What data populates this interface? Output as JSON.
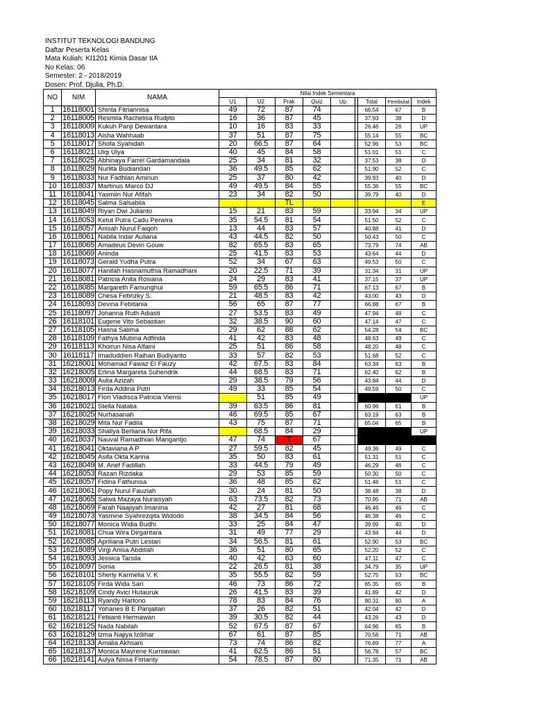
{
  "header": {
    "institution": "INSTITUT TEKNOLOGI BANDUNG",
    "list_title": "Daftar Peserta Kelas",
    "course": "Mata Kuliah: KI1201 Kimia Dasar IIA",
    "class_no": "No Kelas: 06",
    "semester": "Semester: 2 - 2018/2019",
    "lecturer": "Dosen: Prof. Djulia, Ph.D."
  },
  "table": {
    "headers": {
      "no": "NO",
      "nim": "NIM",
      "nama": "NAMA",
      "group": "Nilai Indek Sementara",
      "u1": "U1",
      "u2": "U2",
      "prak": "Prak",
      "quiz": "Quiz",
      "up": "Up",
      "total": "Total",
      "pembulat": "Pembulat",
      "indek": "Indek"
    },
    "colors": {
      "yellow": "#ffff00",
      "red": "#ff0000",
      "black": "#000000"
    },
    "rows": [
      [
        "1",
        "16118001",
        "Shinta Fitriannisa",
        "49",
        "72",
        "87",
        "74",
        "",
        "66.54",
        "67",
        "B"
      ],
      [
        "2",
        "16118005",
        "Resmila Rachelisa Rudjito",
        "16",
        "36",
        "87",
        "45",
        "",
        "37.93",
        "38",
        "D"
      ],
      [
        "3",
        "16118009",
        "Kukuh Panji Dewantara",
        "10",
        "16",
        "83",
        "33",
        "",
        "26.46",
        "26",
        "UP"
      ],
      [
        "4",
        "16118013",
        "Aisha Wahhaab",
        "37",
        "51",
        "87",
        "75",
        "",
        "55.14",
        "55",
        "BC"
      ],
      [
        "5",
        "16118017",
        "Shofa Syahidah",
        "20",
        "66.5",
        "87",
        "64",
        "",
        "52.96",
        "53",
        "BC"
      ],
      [
        "6",
        "16118021",
        "Ulqi Ulya",
        "40",
        "45",
        "84",
        "58",
        "",
        "51.01",
        "51",
        "C"
      ],
      [
        "7",
        "16118025",
        "Abhinaya Farrel Gardamandala",
        "25",
        "34",
        "81",
        "32",
        "",
        "37.53",
        "38",
        "D"
      ],
      [
        "8",
        "16118029",
        "Nurlita Budiandari",
        "36",
        "49.5",
        "85",
        "62",
        "",
        "51.90",
        "52",
        "C"
      ],
      [
        "9",
        "16118033",
        "Nur Fadhlan Aminun",
        "25",
        "37",
        "80",
        "42",
        "",
        "39.93",
        "40",
        "D"
      ],
      [
        "10",
        "16118037",
        "Martinus Marco DJ",
        "49",
        "49.5",
        "84",
        "55",
        "",
        "55.36",
        "55",
        "BC"
      ],
      [
        "11",
        "16118041",
        "Yasmiin Nur Afifah",
        "23",
        "34",
        "82",
        "50",
        "",
        "39.79",
        "40",
        "D"
      ],
      [
        "12",
        "16118045",
        "Salma Salsabila",
        "",
        "",
        "TL",
        "",
        "",
        "",
        "",
        "E"
      ],
      [
        "13",
        "16118049",
        "Riyan Dwi Julianto",
        "15",
        "21",
        "83",
        "59",
        "",
        "33.94",
        "34",
        "UP"
      ],
      [
        "14",
        "16118053",
        "Ketut Putra Cadu Perwira",
        "35",
        "54.5",
        "81",
        "54",
        "",
        "51.50",
        "52",
        "C"
      ],
      [
        "15",
        "16118057",
        "Anisah Nurul Faiqoh",
        "13",
        "44",
        "83",
        "57",
        "",
        "40.88",
        "41",
        "D"
      ],
      [
        "16",
        "16118061",
        "Nabila Indar Auliana",
        "43",
        "44.5",
        "82",
        "50",
        "",
        "50.43",
        "50",
        "C"
      ],
      [
        "17",
        "16118065",
        "Amadeus Devin Gouw",
        "82",
        "65.5",
        "83",
        "65",
        "",
        "73.79",
        "74",
        "AB"
      ],
      [
        "18",
        "16118069",
        "Aninda",
        "25",
        "41.5",
        "83",
        "53",
        "",
        "43.64",
        "44",
        "D"
      ],
      [
        "19",
        "16118073",
        "Gerald Yudha Putra",
        "52",
        "34",
        "67",
        "63",
        "",
        "49.53",
        "50",
        "C"
      ],
      [
        "20",
        "16118077",
        "Hanifah Hasnamuthia Ramadhani",
        "20",
        "22.5",
        "71",
        "39",
        "",
        "31.34",
        "31",
        "UP"
      ],
      [
        "21",
        "16118081",
        "Patricia Anita Rosiana",
        "24",
        "29",
        "83",
        "41",
        "",
        "37.15",
        "37",
        "UP"
      ],
      [
        "22",
        "16118085",
        "Margareth Famunghui",
        "59",
        "65.5",
        "86",
        "71",
        "",
        "67.13",
        "67",
        "B"
      ],
      [
        "23",
        "16118089",
        "Chesa Febrizky S.",
        "21",
        "48.5",
        "83",
        "42",
        "",
        "43.00",
        "43",
        "D"
      ],
      [
        "24",
        "16118093",
        "Devina Febitania",
        "56",
        "65",
        "87",
        "77",
        "",
        "66.88",
        "67",
        "B"
      ],
      [
        "25",
        "16118097",
        "Johanna Ruth Adiasti",
        "27",
        "53.5",
        "83",
        "49",
        "",
        "47.94",
        "48",
        "C"
      ],
      [
        "26",
        "16118101",
        "Eugene Vito Sebastian",
        "32",
        "38.5",
        "90",
        "60",
        "",
        "47.14",
        "47",
        "C"
      ],
      [
        "27",
        "16118105",
        "Hasna Salima",
        "29",
        "62",
        "88",
        "62",
        "",
        "54.28",
        "54",
        "BC"
      ],
      [
        "28",
        "16118109",
        "Fathya Mubina Adfinda",
        "41",
        "42",
        "83",
        "48",
        "",
        "48.63",
        "49",
        "C"
      ],
      [
        "29",
        "16118113",
        "Khoirun Nisa Alfaini",
        "25",
        "51",
        "86",
        "58",
        "",
        "48.20",
        "48",
        "C"
      ],
      [
        "30",
        "16118117",
        "Imaduddien Raihan Budiyanto",
        "33",
        "57",
        "82",
        "53",
        "",
        "51.68",
        "52",
        "C"
      ],
      [
        "31",
        "16218001",
        "Mohamad Fawaz El Fauzy",
        "42",
        "67.5",
        "83",
        "84",
        "",
        "63.34",
        "63",
        "B"
      ],
      [
        "32",
        "16218005",
        "Erlina Margareta Suhendrik",
        "44",
        "68.5",
        "83",
        "71",
        "",
        "62.40",
        "62",
        "B"
      ],
      [
        "33",
        "16218009",
        "Aulia Azizah",
        "29",
        "38.5",
        "79",
        "56",
        "",
        "43.84",
        "44",
        "D"
      ],
      [
        "34",
        "16218013",
        "Firda Addina Putri",
        "49",
        "33",
        "85",
        "54",
        "",
        "49.59",
        "50",
        "C"
      ],
      [
        "35",
        "16218017",
        "Flori Vladisca Patricia Viensi",
        "",
        "51",
        "85",
        "49",
        "",
        "",
        "",
        "UP"
      ],
      [
        "36",
        "16218021",
        "Stella Natalia",
        "39",
        "63.5",
        "86",
        "81",
        "",
        "60.96",
        "61",
        "B"
      ],
      [
        "37",
        "16218025",
        "Nurhasanah",
        "46",
        "69.5",
        "85",
        "67",
        "",
        "63.19",
        "63",
        "B"
      ],
      [
        "38",
        "16218029",
        "Mita Nur Fadila",
        "43",
        "75",
        "87",
        "71",
        "",
        "65.04",
        "65",
        "B"
      ],
      [
        "39",
        "16218033",
        "Shallya Berliana Nur Rifa",
        "",
        "68.5",
        "84",
        "29",
        "",
        "",
        "",
        "UP"
      ],
      [
        "40",
        "16218037",
        "Nauval Ramadhian Mangantjo",
        "47",
        "74",
        "T",
        "67",
        "",
        "",
        "",
        ""
      ],
      [
        "41",
        "16218041",
        "Oktaviana A P",
        "27",
        "59.5",
        "82",
        "45",
        "",
        "49.36",
        "49",
        "C"
      ],
      [
        "42",
        "16218045",
        "Asifa Okta Karina",
        "35",
        "50",
        "83",
        "61",
        "",
        "51.31",
        "51",
        "C"
      ],
      [
        "43",
        "16218049",
        "M. Arief Fadillah",
        "33",
        "44.5",
        "79",
        "49",
        "",
        "46.29",
        "46",
        "C"
      ],
      [
        "44",
        "16218053",
        "Razan Rizdaka",
        "29",
        "53",
        "85",
        "59",
        "",
        "50.30",
        "50",
        "C"
      ],
      [
        "45",
        "16218057",
        "Fidina Fathunisa",
        "36",
        "48",
        "85",
        "62",
        "",
        "51.46",
        "51",
        "C"
      ],
      [
        "46",
        "16218061",
        "Popy Nurul Fauziah",
        "30",
        "24",
        "81",
        "50",
        "",
        "38.48",
        "38",
        "D"
      ],
      [
        "47",
        "16218065",
        "Salwa Mazaya Nuraisyah",
        "63",
        "73.5",
        "82",
        "73",
        "",
        "70.95",
        "71",
        "AB"
      ],
      [
        "48",
        "16218069",
        "Farah Naajiyah Imanina",
        "42",
        "27",
        "81",
        "68",
        "",
        "46.46",
        "46",
        "C"
      ],
      [
        "49",
        "16218073",
        "Yasmine Syahrezqita Widodo",
        "38",
        "34.5",
        "84",
        "56",
        "",
        "46.38",
        "46",
        "C"
      ],
      [
        "50",
        "16218077",
        "Monica Widia Budhi",
        "33",
        "25",
        "84",
        "47",
        "",
        "39.99",
        "40",
        "D"
      ],
      [
        "51",
        "16218081",
        "Chua Wira Dirgantara",
        "31",
        "49",
        "77",
        "29",
        "",
        "43.94",
        "44",
        "D"
      ],
      [
        "52",
        "16218085",
        "Apriliana Putri Lestari",
        "34",
        "56.5",
        "81",
        "61",
        "",
        "52.90",
        "53",
        "BC"
      ],
      [
        "53",
        "16218089",
        "Virgi Anisa Abdillah",
        "36",
        "51",
        "80",
        "65",
        "",
        "52.20",
        "52",
        "C"
      ],
      [
        "54",
        "16218093",
        "Jessica Tarsila",
        "40",
        "42",
        "63",
        "60",
        "",
        "47.11",
        "47",
        "C"
      ],
      [
        "55",
        "16218097",
        "Sonia",
        "22",
        "26.5",
        "81",
        "38",
        "",
        "34.79",
        "35",
        "UP"
      ],
      [
        "56",
        "16218101",
        "Sherly Karmelia V. K",
        "35",
        "55.5",
        "82",
        "59",
        "",
        "52.75",
        "53",
        "BC"
      ],
      [
        "57",
        "16218105",
        "Firda Wida Sari",
        "46",
        "73",
        "86",
        "72",
        "",
        "65.35",
        "65",
        "B"
      ],
      [
        "58",
        "16218109",
        "Cindy Avici Hutauruk",
        "26",
        "41.5",
        "83",
        "39",
        "",
        "41.89",
        "42",
        "D"
      ],
      [
        "59",
        "16218113",
        "Ryandy Hartono",
        "78",
        "83",
        "84",
        "76",
        "",
        "80.31",
        "80",
        "A"
      ],
      [
        "60",
        "16218117",
        "Yohanes B E Panjaitan",
        "37",
        "26",
        "82",
        "51",
        "",
        "42.04",
        "42",
        "D"
      ],
      [
        "61",
        "16218121",
        "Febianti Hermawan",
        "39",
        "30.5",
        "82",
        "44",
        "",
        "43.26",
        "43",
        "D"
      ],
      [
        "62",
        "16218125",
        "Nada Nabilah",
        "52",
        "67.5",
        "87",
        "67",
        "",
        "64.96",
        "65",
        "B"
      ],
      [
        "63",
        "16218129",
        "Izma Najiya Izdihar",
        "67",
        "61",
        "87",
        "85",
        "",
        "70.56",
        "71",
        "AB"
      ],
      [
        "64",
        "16218133",
        "Amalia Akhsani",
        "73",
        "74",
        "86",
        "82",
        "",
        "76.69",
        "77",
        "A"
      ],
      [
        "65",
        "16218137",
        "Monica Mayrene Kurniawan",
        "41",
        "62.5",
        "86",
        "51",
        "",
        "56.78",
        "57",
        "BC"
      ],
      [
        "66",
        "16218141",
        "Aulya Nissa Fitrianty",
        "54",
        "78.5",
        "87",
        "80",
        "",
        "71.35",
        "71",
        "AB"
      ]
    ],
    "cell_highlights": {
      "12": {
        "3": "yellow",
        "4": "yellow",
        "5": "yellow",
        "6": "yellow",
        "7": "yellow",
        "gap": "yellow",
        "8": "yellow",
        "9": "yellow",
        "10": "yellow"
      },
      "35": {
        "3": "yellow",
        "8": "black",
        "9": "black"
      },
      "39": {
        "3": "yellow",
        "8": "black",
        "9": "black"
      },
      "40": {
        "5": "red",
        "8": "black",
        "9": "black",
        "10": "black"
      }
    }
  }
}
